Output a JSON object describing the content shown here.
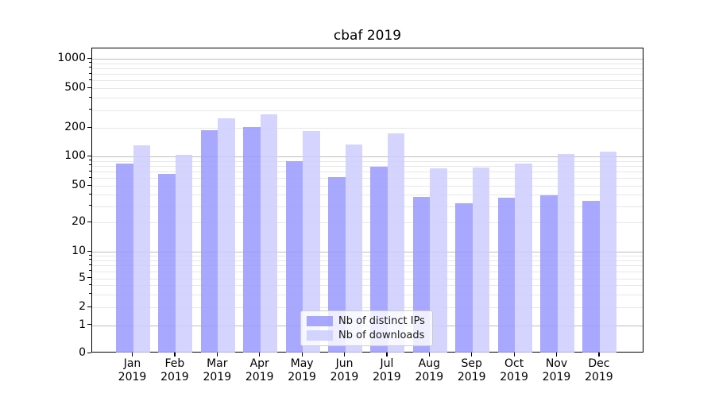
{
  "title": "cbaf 2019",
  "legend": {
    "items": [
      {
        "label": "Nb of distinct IPs",
        "color": "#9999ff"
      },
      {
        "label": "Nb of downloads",
        "color": "#ccccff"
      }
    ]
  },
  "axes": {
    "ytick_labels": [
      "0",
      "1",
      "2",
      "5",
      "10",
      "20",
      "50",
      "100",
      "200",
      "500",
      "1000"
    ],
    "x_year": "2019"
  },
  "colors": {
    "bar_ips": "#9999ff",
    "bar_downloads": "#ccccff",
    "bar_alpha": 0.85,
    "grid_major": "#bdbdbd",
    "grid_minor": "#e7e7e7",
    "spine": "#000000"
  },
  "chart_data": {
    "type": "bar",
    "title": "cbaf 2019",
    "xlabel": "",
    "ylabel": "",
    "yscale": "symlog",
    "grid": true,
    "legend_position": "lower center (inside axes)",
    "categories": [
      "Jan",
      "Feb",
      "Mar",
      "Apr",
      "May",
      "Jun",
      "Jul",
      "Aug",
      "Sep",
      "Oct",
      "Nov",
      "Dec"
    ],
    "year": "2019",
    "yticks": [
      0,
      1,
      2,
      5,
      10,
      20,
      50,
      100,
      200,
      500,
      1000
    ],
    "ylim": [
      0,
      1300
    ],
    "series": [
      {
        "name": "Nb of distinct IPs",
        "color": "#9999ff",
        "values": [
          85,
          66,
          190,
          205,
          90,
          62,
          78,
          38,
          32,
          37,
          39,
          34
        ]
      },
      {
        "name": "Nb of downloads",
        "color": "#ccccff",
        "values": [
          130,
          104,
          250,
          275,
          185,
          133,
          174,
          75,
          77,
          84,
          105,
          112
        ]
      }
    ]
  }
}
